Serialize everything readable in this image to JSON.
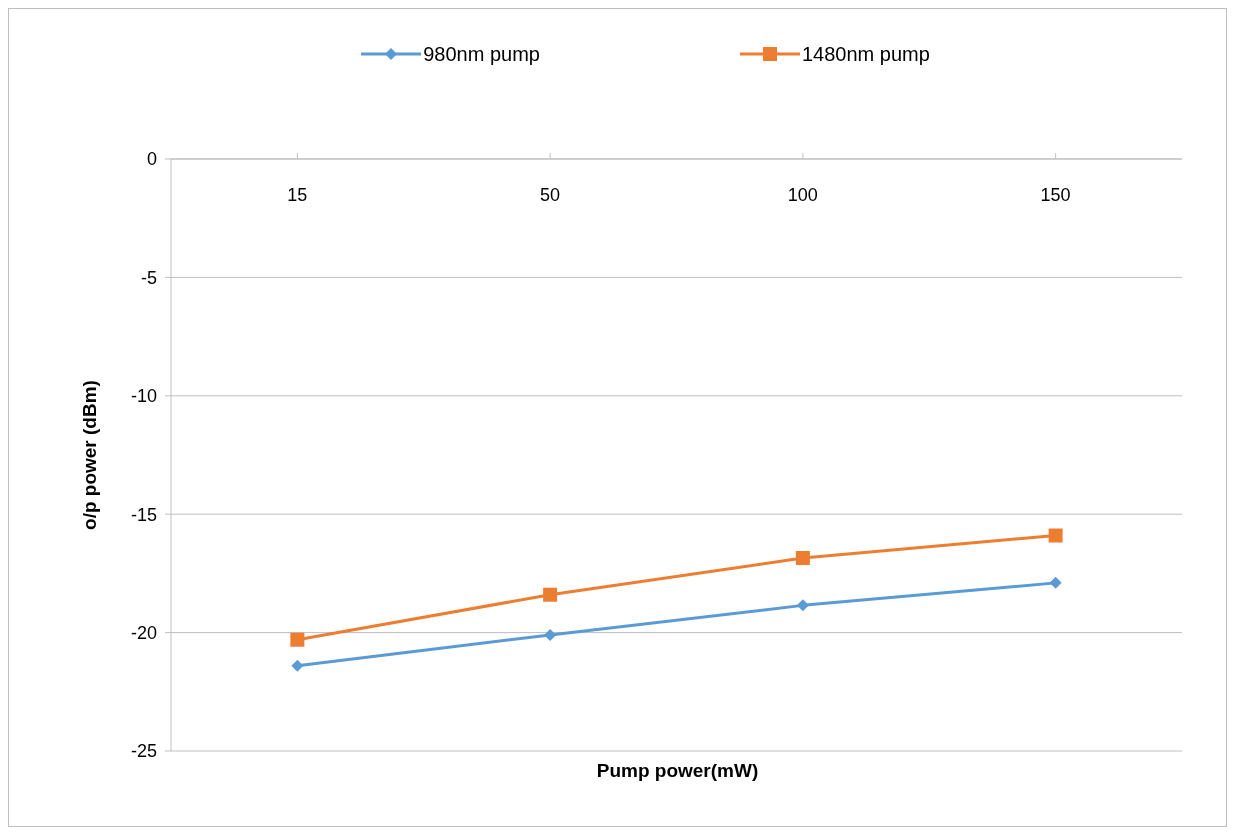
{
  "chart_data": {
    "type": "line",
    "xlabel": "Pump power(mW)",
    "ylabel": "o/p power (dBm)",
    "categories": [
      "15",
      "50",
      "100",
      "150"
    ],
    "series": [
      {
        "name": "980nm pump",
        "color": "#5b9bd5",
        "marker": "diamond",
        "values": [
          -21.4,
          -20.1,
          -18.85,
          -17.9
        ]
      },
      {
        "name": "1480nm pump",
        "color": "#ed7d31",
        "marker": "square",
        "values": [
          -20.3,
          -18.4,
          -16.85,
          -15.9
        ]
      }
    ],
    "ylim": [
      -25,
      0
    ],
    "yticks": [
      0,
      -5,
      -10,
      -15,
      -20,
      -25
    ],
    "grid": "y",
    "legend": "top",
    "line_style": "solid"
  }
}
